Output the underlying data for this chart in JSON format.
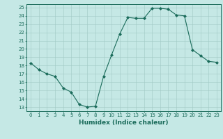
{
  "x": [
    0,
    1,
    2,
    3,
    4,
    5,
    6,
    7,
    8,
    9,
    10,
    11,
    12,
    13,
    14,
    15,
    16,
    17,
    18,
    19,
    20,
    21,
    22,
    23
  ],
  "y": [
    18.3,
    17.5,
    17.0,
    16.7,
    15.3,
    14.8,
    13.3,
    13.0,
    13.1,
    16.7,
    19.3,
    21.8,
    23.8,
    23.7,
    23.7,
    24.9,
    24.9,
    24.8,
    24.1,
    24.0,
    19.9,
    19.2,
    18.5,
    18.4
  ],
  "xlim": [
    -0.5,
    23.5
  ],
  "ylim_min": 12.5,
  "ylim_max": 25.4,
  "yticks": [
    13,
    14,
    15,
    16,
    17,
    18,
    19,
    20,
    21,
    22,
    23,
    24,
    25
  ],
  "xticks": [
    0,
    1,
    2,
    3,
    4,
    5,
    6,
    7,
    8,
    9,
    10,
    11,
    12,
    13,
    14,
    15,
    16,
    17,
    18,
    19,
    20,
    21,
    22,
    23
  ],
  "xlabel": "Humidex (Indice chaleur)",
  "line_color": "#1a6b5a",
  "marker": "D",
  "marker_size": 2.0,
  "bg_color": "#c5e8e5",
  "grid_color": "#a0c8c4",
  "tick_fontsize": 5.0,
  "xlabel_fontsize": 6.5
}
